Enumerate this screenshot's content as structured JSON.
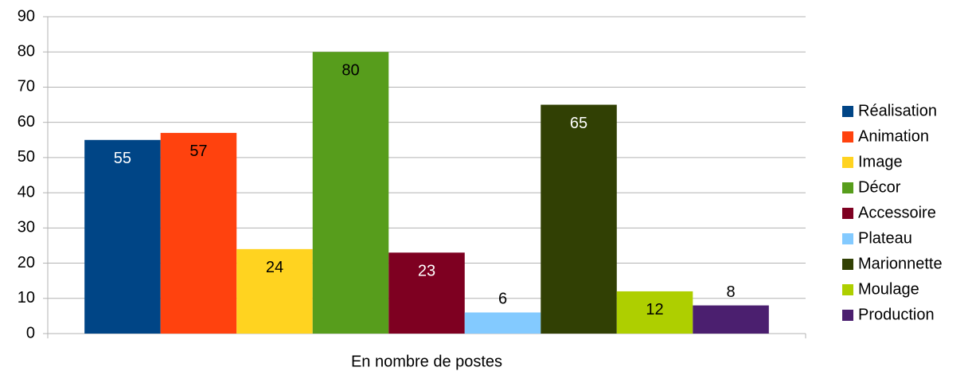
{
  "chart_data": {
    "type": "bar",
    "categories": [
      "En nombre de postes"
    ],
    "series": [
      {
        "name": "Réalisation",
        "color": "#004586",
        "values": [
          55
        ]
      },
      {
        "name": "Animation",
        "color": "#ff420e",
        "values": [
          57
        ]
      },
      {
        "name": "Image",
        "color": "#ffd320",
        "values": [
          24
        ]
      },
      {
        "name": "Décor",
        "color": "#579d1c",
        "values": [
          80
        ]
      },
      {
        "name": "Accessoire",
        "color": "#7e0021",
        "values": [
          23
        ]
      },
      {
        "name": "Plateau",
        "color": "#83caff",
        "values": [
          6
        ]
      },
      {
        "name": "Marionnette",
        "color": "#314004",
        "values": [
          65
        ]
      },
      {
        "name": "Moulage",
        "color": "#aecf00",
        "values": [
          12
        ]
      },
      {
        "name": "Production",
        "color": "#4b1f6f",
        "values": [
          8
        ]
      }
    ],
    "ylim": [
      0,
      90
    ],
    "yticks": [
      0,
      10,
      20,
      30,
      40,
      50,
      60,
      70,
      80,
      90
    ],
    "grid": true,
    "legend": "right"
  }
}
